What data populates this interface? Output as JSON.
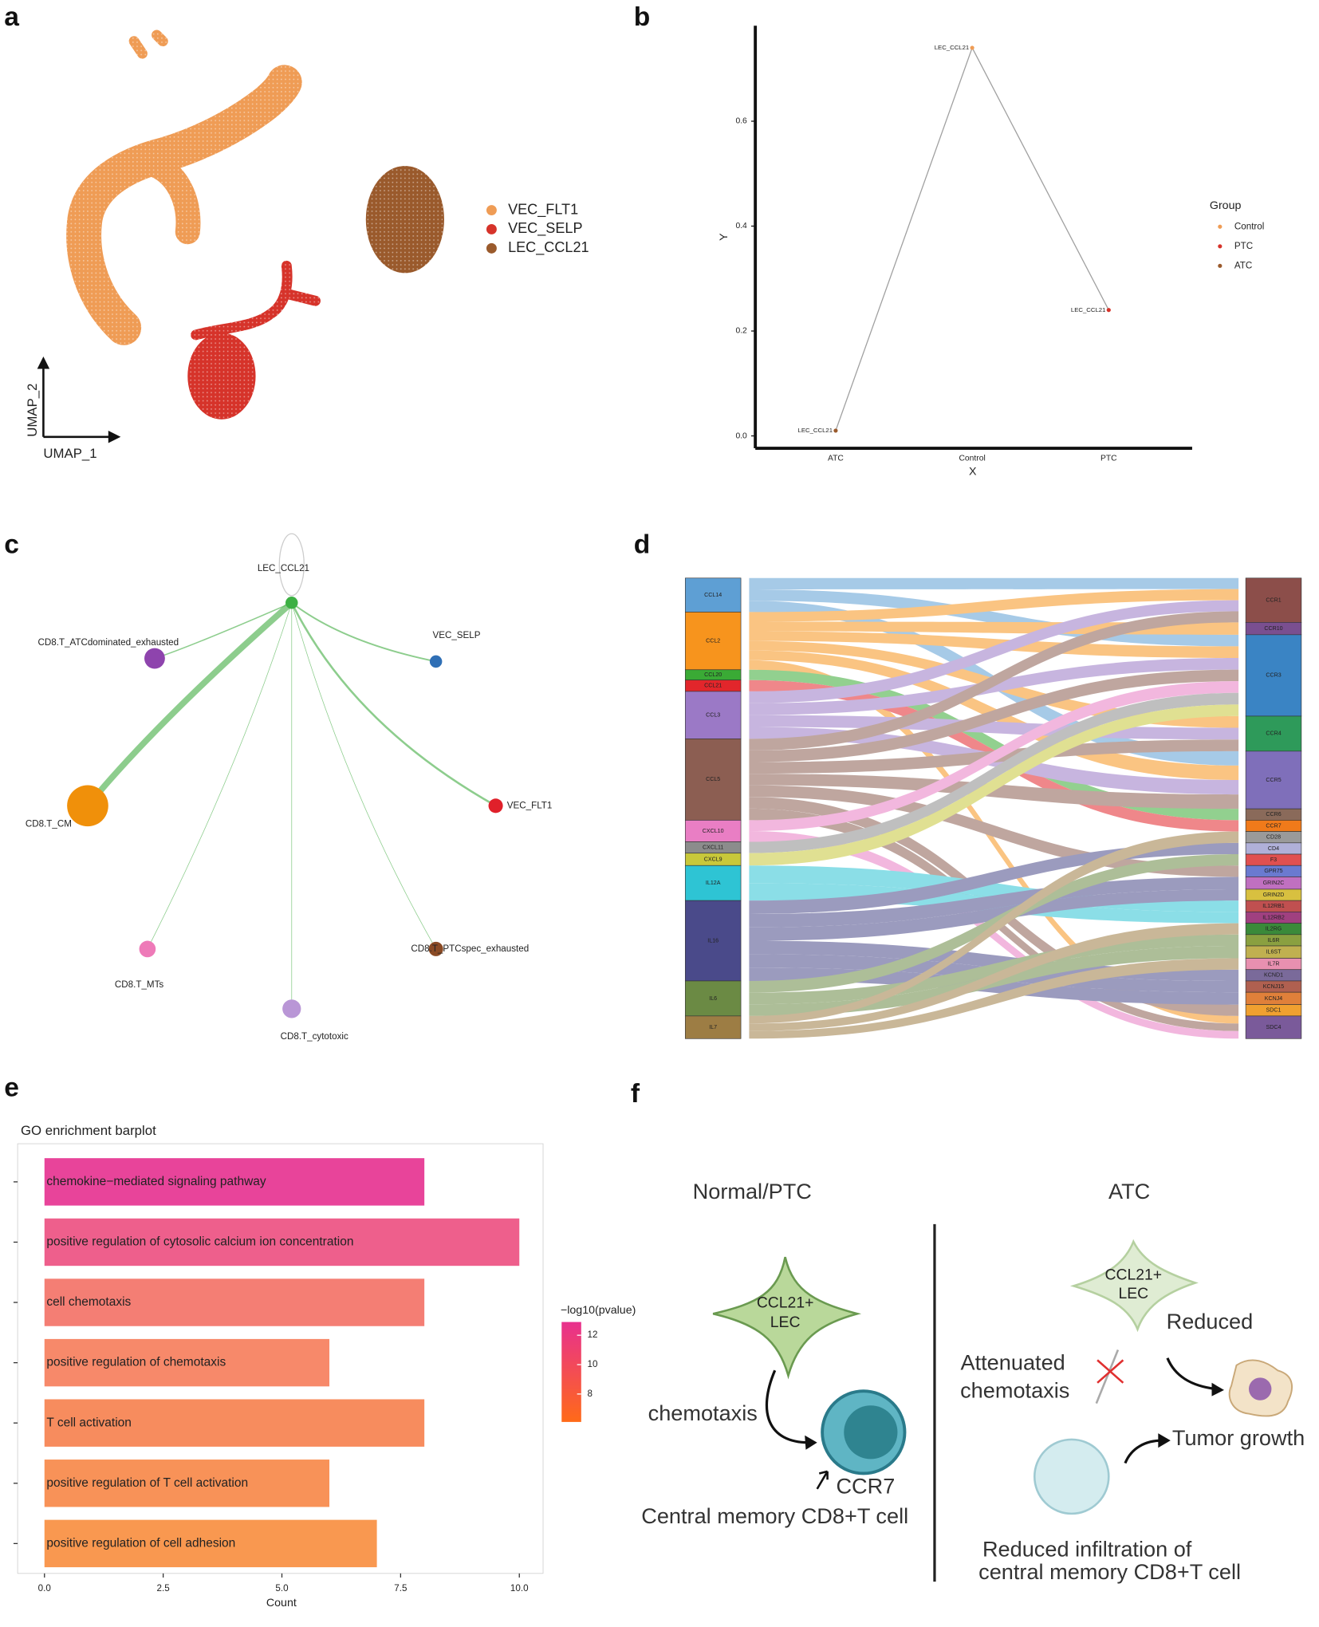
{
  "panel_labels": [
    "a",
    "b",
    "c",
    "d",
    "e",
    "f"
  ],
  "umap": {
    "xlabel": "UMAP_1",
    "ylabel": "UMAP_2",
    "legend": [
      {
        "name": "VEC_FLT1",
        "color": "#ef9c55"
      },
      {
        "name": "VEC_SELP",
        "color": "#d6332a"
      },
      {
        "name": "LEC_CCL21",
        "color": "#9a5a2c"
      }
    ]
  },
  "chart_data": [
    {
      "type": "line",
      "xlabel": "X",
      "ylabel": "Y",
      "categories": [
        "ATC",
        "Control",
        "PTC"
      ],
      "values": [
        0.01,
        0.74,
        0.24
      ],
      "point_labels": [
        "LEC_CCL21",
        "LEC_CCL21",
        "LEC_CCL21"
      ],
      "point_colors": [
        "#9a5a2c",
        "#ef9c55",
        "#d6332a"
      ],
      "line_color": "#a0a0a0",
      "label_color": "#e8a070",
      "ylim": [
        -0.0235,
        0.782
      ],
      "yticks": [
        {
          "value": 0,
          "label": "0.0"
        },
        0.2,
        0.4,
        0.6
      ],
      "legend": {
        "title": "Group",
        "names": [
          "Control",
          "PTC",
          "ATC"
        ],
        "colors": [
          "#ef9c55",
          "#d6332a",
          "#9a5a2c"
        ],
        "position": "right"
      }
    },
    {
      "type": "barh",
      "title": "GO enrichment barplot",
      "xlabel": "Count",
      "categories": [
        "chemokine−mediated signaling pathway",
        "positive regulation of cytosolic calcium ion concentration",
        "cell chemotaxis",
        "positive regulation of chemotaxis",
        "T cell activation",
        "positive regulation of T cell activation",
        "positive regulation of cell adhesion"
      ],
      "values": [
        8,
        10,
        8,
        6,
        8,
        6,
        7
      ],
      "colors": [
        "#e8449a",
        "#ee5f8c",
        "#f47e74",
        "#f7896a",
        "#f78c5e",
        "#f89258",
        "#f99850"
      ],
      "xlim": [
        -0.5,
        10.5
      ],
      "xticks": [
        {
          "value": 0,
          "label": "0.0"
        },
        2.5,
        {
          "value": 5,
          "label": "5.0"
        },
        7.5,
        {
          "value": 10,
          "label": "10.0"
        }
      ],
      "colorbar": {
        "title": "−log10(pvalue)",
        "lim": [
          6.1,
          12.9
        ],
        "ticks": [
          8,
          10,
          12
        ],
        "low_color": "#ff6a18",
        "high_color": "#e8308e"
      }
    }
  ],
  "network": {
    "nodes": [
      {
        "label": "LEC_CCL21",
        "color": "#3cb043"
      },
      {
        "label": "CD8.T_ATCdominated_exhausted",
        "color": "#8e44ad"
      },
      {
        "label": "VEC_SELP",
        "color": "#2f6fb5"
      },
      {
        "label": "VEC_FLT1",
        "color": "#e0202a"
      },
      {
        "label": "CD8.T_CM",
        "color": "#f0900a"
      },
      {
        "label": "CD8.T_MTs",
        "color": "#ee7ab8"
      },
      {
        "label": "CD8.T_cytotoxic",
        "color": "#b996d6"
      },
      {
        "label": "CD8.T_PTCspec_exhausted",
        "color": "#8a4a24"
      }
    ],
    "edge_color": "#5cb85c"
  },
  "sankey": {
    "sources": [
      {
        "label": "CCL14",
        "color": "#5e9fd4"
      },
      {
        "label": "CCL2",
        "color": "#f7941d"
      },
      {
        "label": "CCL20",
        "color": "#3aaa35"
      },
      {
        "label": "CCL21",
        "color": "#e2262b"
      },
      {
        "label": "CCL3",
        "color": "#9b79c6"
      },
      {
        "label": "CCL5",
        "color": "#8c5e52"
      },
      {
        "label": "CXCL10",
        "color": "#e97ec4"
      },
      {
        "label": "CXCL11",
        "color": "#8c8c8c"
      },
      {
        "label": "CXCL9",
        "color": "#c8c83a"
      },
      {
        "label": "IL12A",
        "color": "#2ec4d4"
      },
      {
        "label": "IL16",
        "color": "#4a4a8a"
      },
      {
        "label": "IL6",
        "color": "#6b8a44"
      },
      {
        "label": "IL7",
        "color": "#9d7d44"
      }
    ],
    "targets": [
      {
        "label": "CCR1",
        "color": "#8c4e4a"
      },
      {
        "label": "CCR10",
        "color": "#7a4f90"
      },
      {
        "label": "CCR3",
        "color": "#3a84c4"
      },
      {
        "label": "CCR4",
        "color": "#2e9a5a"
      },
      {
        "label": "CCR5",
        "color": "#7f6fba"
      },
      {
        "label": "CCR6",
        "color": "#8a6a5a"
      },
      {
        "label": "CCR7",
        "color": "#f07a1a"
      },
      {
        "label": "CD28",
        "color": "#9a9a9a"
      },
      {
        "label": "CD4",
        "color": "#b0b0d8"
      },
      {
        "label": "F3",
        "color": "#e05050"
      },
      {
        "label": "GPR75",
        "color": "#6a7ad0"
      },
      {
        "label": "GRIN2C",
        "color": "#c070c0"
      },
      {
        "label": "GRIN2D",
        "color": "#d8c040"
      },
      {
        "label": "IL12RB1",
        "color": "#c05050"
      },
      {
        "label": "IL12RB2",
        "color": "#a04080"
      },
      {
        "label": "IL2RG",
        "color": "#3a8a3a"
      },
      {
        "label": "IL6R",
        "color": "#8aa040"
      },
      {
        "label": "IL6ST",
        "color": "#c0b050"
      },
      {
        "label": "IL7R",
        "color": "#e890b0"
      },
      {
        "label": "KCND1",
        "color": "#7a6a9a"
      },
      {
        "label": "KCNJ15",
        "color": "#b06050"
      },
      {
        "label": "KCNJ4",
        "color": "#e0803a"
      },
      {
        "label": "SDC1",
        "color": "#f0a030"
      },
      {
        "label": "SDC4",
        "color": "#7a5a9a"
      }
    ]
  },
  "schematic": {
    "left_title": "Normal/PTC",
    "right_title": "ATC",
    "cell_line1": "CCL21+",
    "cell_line2": "LEC",
    "chemotaxis": "chemotaxis",
    "receptor": "CCR7",
    "memory_cell": "Central memory CD8+T cell",
    "reduced": "Reduced",
    "attenuated_1": "Attenuated",
    "attenuated_2": "chemotaxis",
    "tumor": "Tumor growth",
    "infiltration_1": "Reduced infiltration of",
    "infiltration_2": "central memory CD8+T cell"
  }
}
